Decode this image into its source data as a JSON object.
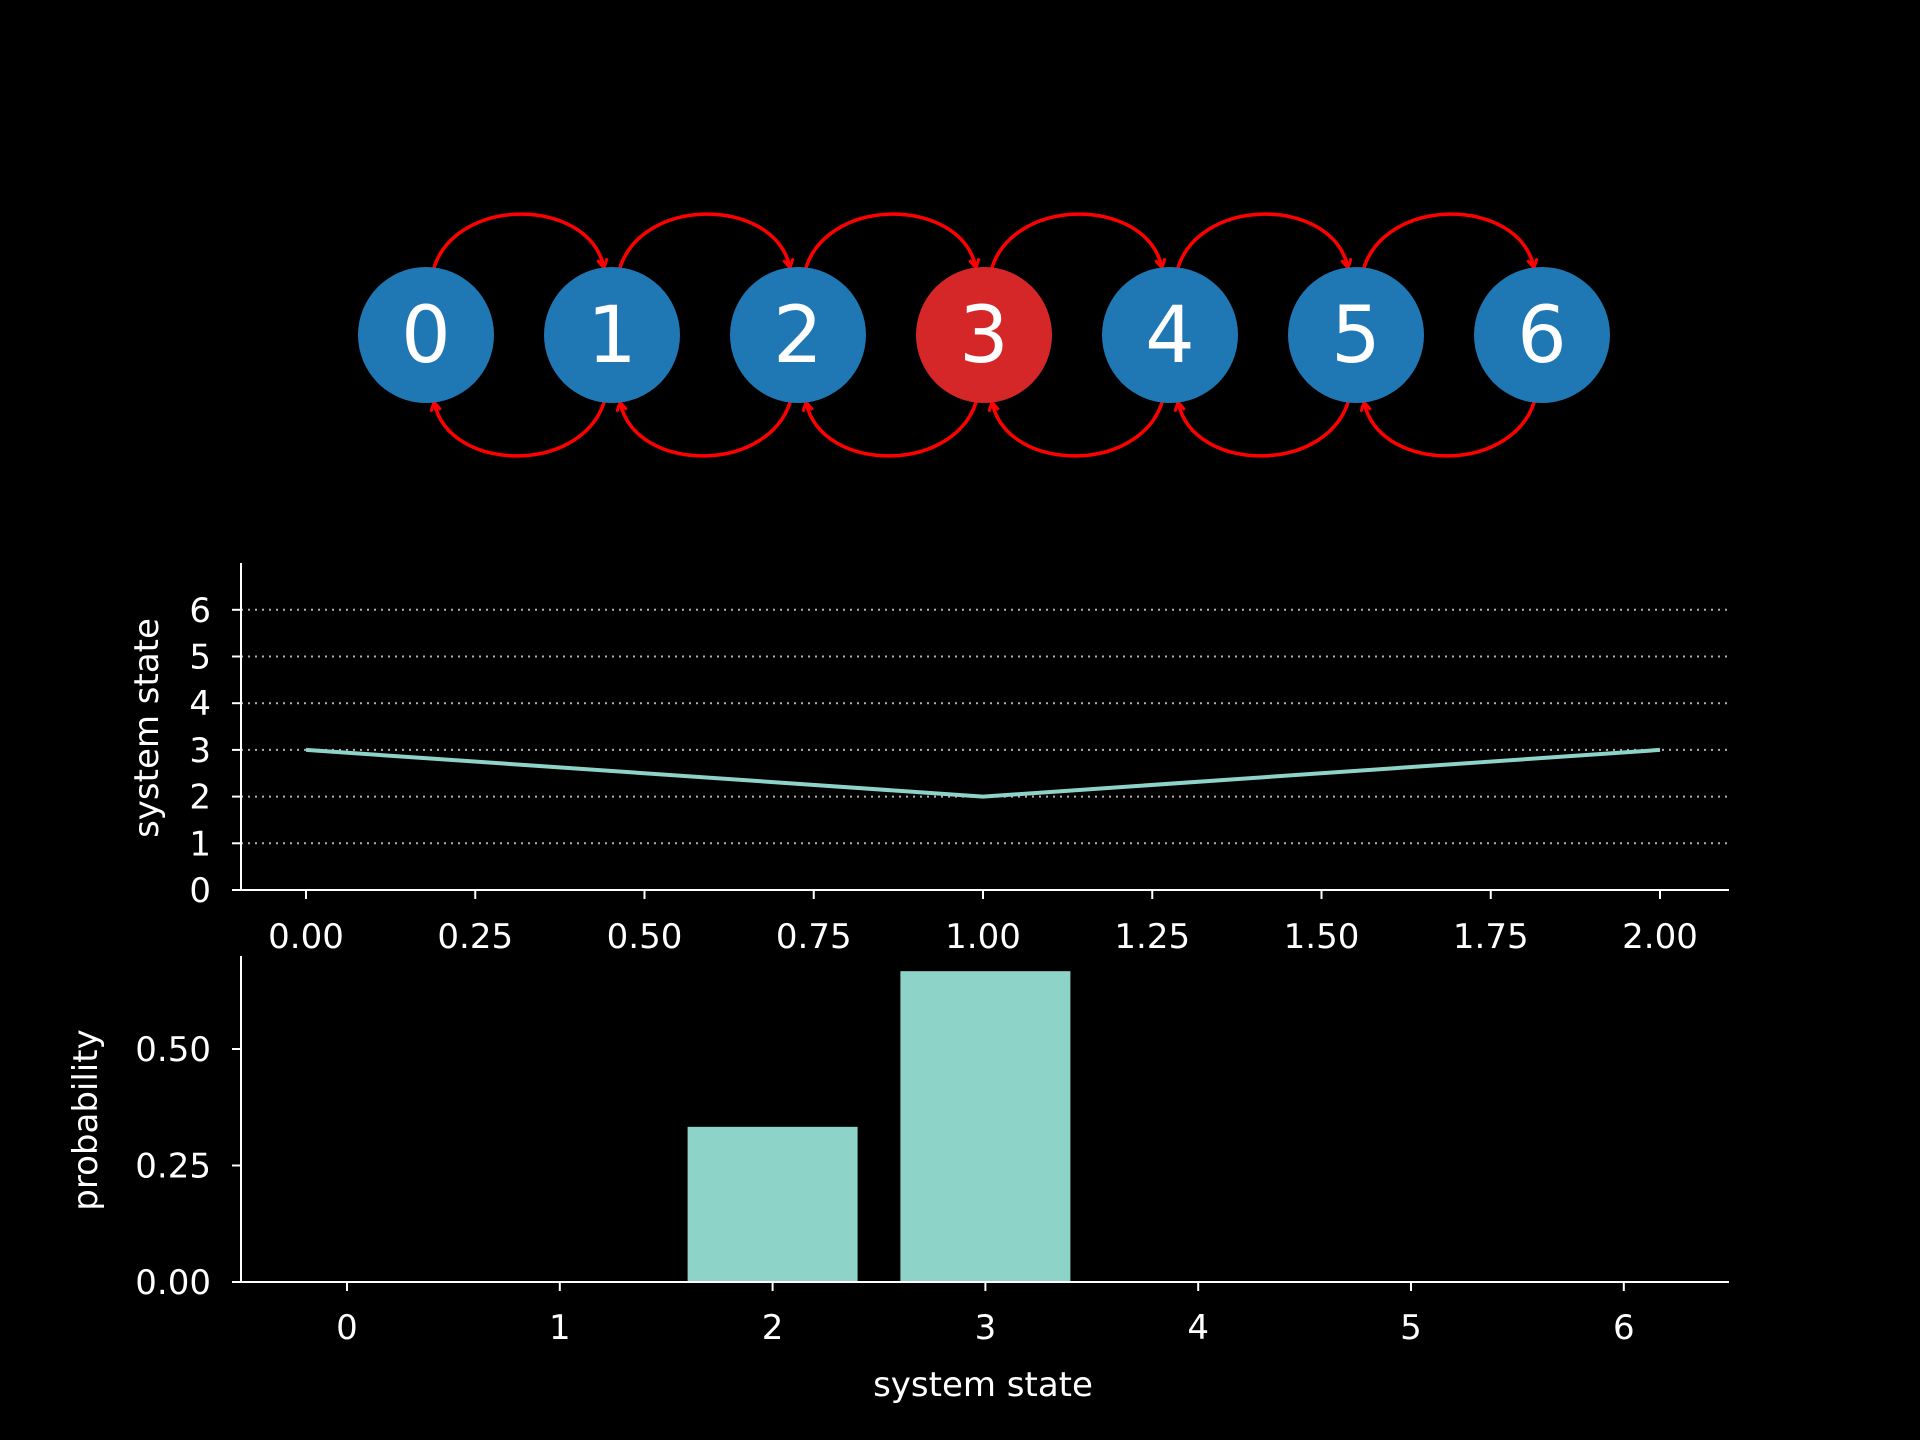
{
  "colors": {
    "background": "#000000",
    "foreground": "#ffffff",
    "node_default": "#1f77b4",
    "node_current": "#d62728",
    "edge": "#ff0000",
    "series": "#8dd3c7",
    "grid": "#b0b0b0"
  },
  "chart_data": [
    {
      "type": "diagram",
      "nodes": [
        {
          "label": "0",
          "current": false
        },
        {
          "label": "1",
          "current": false
        },
        {
          "label": "2",
          "current": false
        },
        {
          "label": "3",
          "current": true
        },
        {
          "label": "4",
          "current": false
        },
        {
          "label": "5",
          "current": false
        },
        {
          "label": "6",
          "current": false
        }
      ],
      "edges": [
        [
          0,
          1
        ],
        [
          1,
          2
        ],
        [
          2,
          3
        ],
        [
          3,
          4
        ],
        [
          4,
          5
        ],
        [
          5,
          6
        ],
        [
          1,
          0
        ],
        [
          2,
          1
        ],
        [
          3,
          2
        ],
        [
          4,
          3
        ],
        [
          5,
          4
        ],
        [
          6,
          5
        ]
      ]
    },
    {
      "type": "line",
      "x": [
        0.0,
        1.0,
        2.0
      ],
      "y": [
        3,
        2,
        3
      ],
      "xlabel": "",
      "ylabel": "system state",
      "xlim": [
        -0.1,
        2.1
      ],
      "ylim": [
        0,
        7
      ],
      "xticks": [
        "0.00",
        "0.25",
        "0.50",
        "0.75",
        "1.00",
        "1.25",
        "1.50",
        "1.75",
        "2.00"
      ],
      "xtick_values": [
        0.0,
        0.25,
        0.5,
        0.75,
        1.0,
        1.25,
        1.5,
        1.75,
        2.0
      ],
      "yticks": [
        "0",
        "1",
        "2",
        "3",
        "4",
        "5",
        "6"
      ],
      "ytick_values": [
        0,
        1,
        2,
        3,
        4,
        5,
        6
      ],
      "grid": "horizontal dotted"
    },
    {
      "type": "bar",
      "categories": [
        "0",
        "1",
        "2",
        "3",
        "4",
        "5",
        "6"
      ],
      "values": [
        0,
        0,
        0.333,
        0.667,
        0,
        0,
        0
      ],
      "xlabel": "system state",
      "ylabel": "probability",
      "xlim": [
        -0.5,
        6.5
      ],
      "ylim": [
        0,
        0.7
      ],
      "yticks": [
        "0.00",
        "0.25",
        "0.50"
      ],
      "ytick_values": [
        0,
        0.25,
        0.5
      ],
      "grid": "off"
    }
  ]
}
